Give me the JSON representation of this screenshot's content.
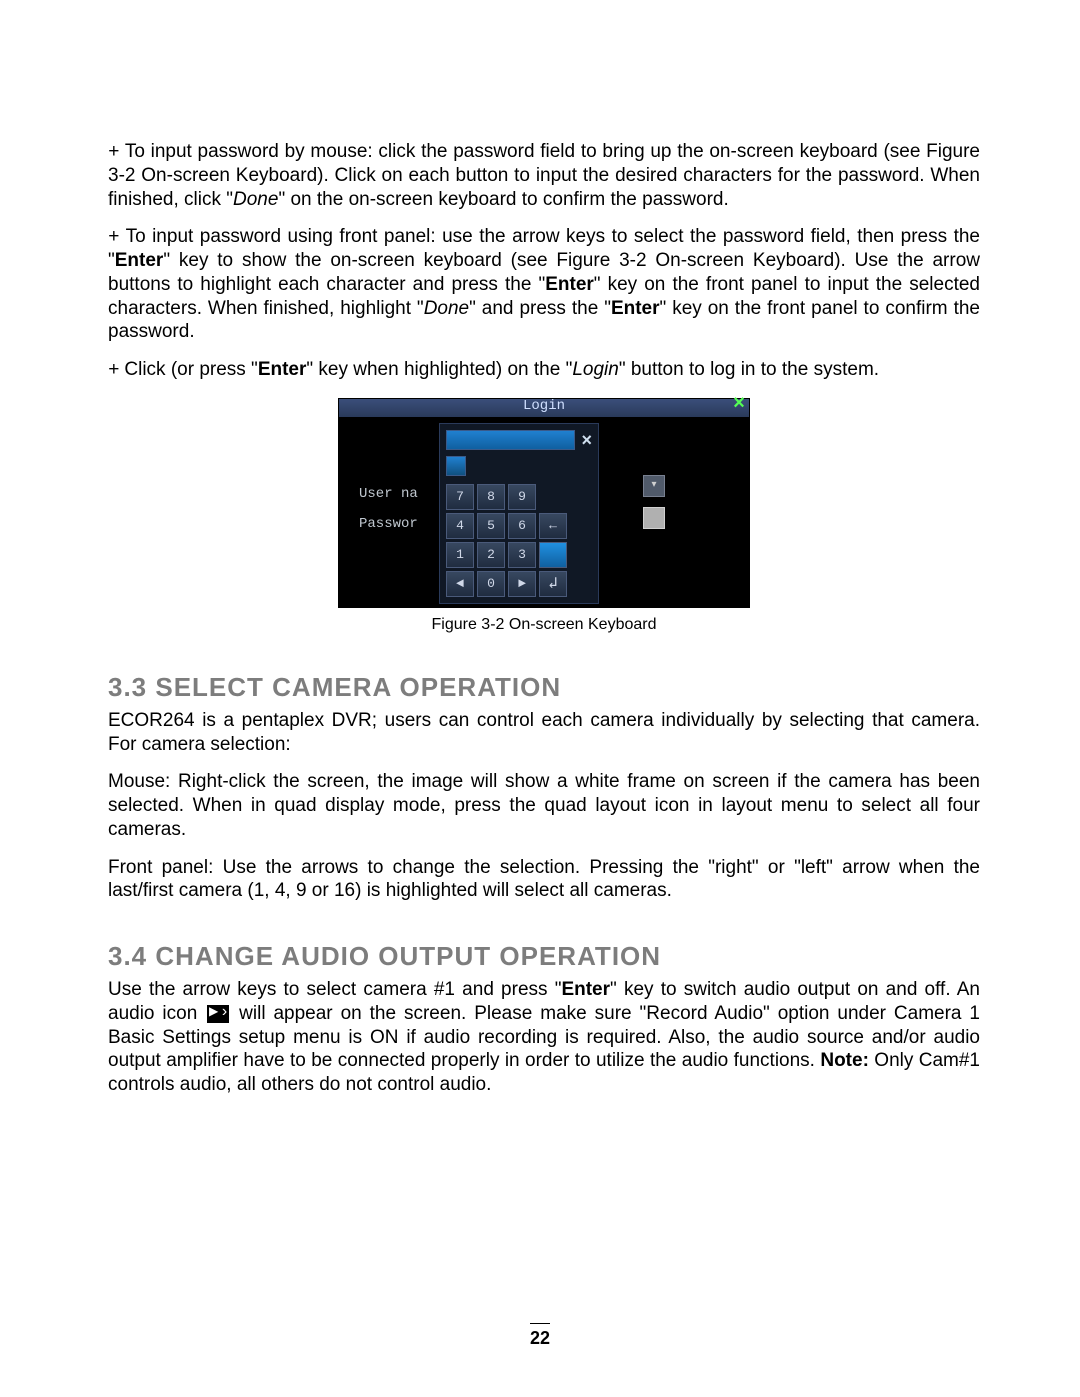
{
  "paragraphs": {
    "p1": {
      "prefix": "+ ",
      "text_a": "To input password by mouse: click the password field to bring up the on-screen keyboard (see Figure 3-2 On-screen Keyboard). Click on each button to input the desired characters for the password. When finished, click \"",
      "em_a": "Done",
      "text_b": "\" on the on-screen keyboard to confirm the password."
    },
    "p2": {
      "prefix": "+ ",
      "text_a": "To input password using front panel: use the arrow keys to select the password field, then press the \"",
      "bold_a": "Enter",
      "text_b": "\" key to show the on-screen keyboard (see Figure 3-2 On-screen Keyboard). Use the arrow buttons to highlight each character and press the \"",
      "bold_b": "Enter",
      "text_c": "\" key on the front panel to input the selected characters. When finished, highlight \"",
      "em_a": "Done",
      "text_d": "\" and press the \"",
      "bold_c": "Enter",
      "text_e": "\" key on the front panel to confirm the password."
    },
    "p3": {
      "prefix": "+ ",
      "text_a": "Click (or press \"",
      "bold_a": "Enter",
      "text_b": "\" key when highlighted) on the \"",
      "em_a": "Login",
      "text_c": "\" button to log in to the system."
    },
    "p4": "ECOR264 is a pentaplex DVR; users can control each camera individually by selecting that camera. For camera selection:",
    "p5": "Mouse: Right-click the screen, the image will show a white frame on screen if the camera has been selected. When in quad display mode, press the quad layout icon in layout menu to select all four cameras.",
    "p6": "Front panel: Use the arrows to change the selection. Pressing the \"right\" or \"left\" arrow when the last/first camera (1, 4, 9 or 16) is highlighted will select all cameras.",
    "p7": {
      "text_a": "Use the arrow keys to select camera #1 and press \"",
      "bold_a": "Enter",
      "text_b": "\" key to switch audio output on and off. An audio icon ",
      "text_c": " will appear on the screen. Please make sure \"Record Audio\" option under Camera 1 Basic Settings setup menu is ON if audio recording is required. Also, the audio source and/or audio output amplifier have to be connected properly in order to utilize the audio functions. ",
      "bold_b": "Note:",
      "text_d": " Only Cam#1 controls audio, all others do not control audio."
    }
  },
  "sections": {
    "s33": "3.3 SELECT CAMERA OPERATION",
    "s34": "3.4 CHANGE AUDIO OUTPUT OPERATION"
  },
  "figure": {
    "caption": "Figure 3-2 On-screen Keyboard",
    "title": "Login",
    "close_symbol": "×",
    "inner_close": "×",
    "label_user": "User na",
    "label_pass": "Passwor",
    "dropdown_symbol": "▾",
    "keys": [
      "7",
      "8",
      "9",
      "",
      "4",
      "5",
      "6",
      "←",
      "1",
      "2",
      "3",
      "",
      "◄",
      "0",
      "►",
      "↲"
    ]
  },
  "page_number": "22",
  "style": {
    "section_title_color": "#7d7d7d",
    "section_title_fontsize": 26,
    "body_fontsize": 19,
    "background_color": "#ffffff"
  }
}
